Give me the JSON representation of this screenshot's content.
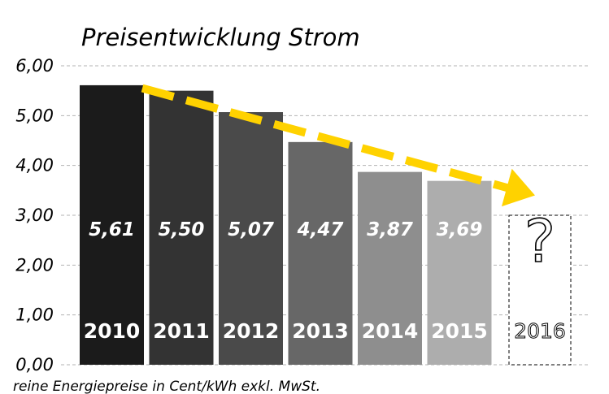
{
  "chart_data": {
    "type": "bar",
    "title": "Preisentwicklung Strom",
    "categories": [
      "2010",
      "2011",
      "2012",
      "2013",
      "2014",
      "2015",
      "2016"
    ],
    "values": [
      5.61,
      5.5,
      5.07,
      4.47,
      3.87,
      3.69,
      null
    ],
    "value_labels": [
      "5,61",
      "5,50",
      "5,07",
      "4,47",
      "3,87",
      "3,69",
      "?"
    ],
    "colors": [
      "#1b1b1b",
      "#333333",
      "#4a4a4a",
      "#676767",
      "#8e8e8e",
      "#adadad",
      "#ffffff"
    ],
    "ylim": [
      0,
      6
    ],
    "yticks": [
      {
        "value": 0,
        "label": "0,00"
      },
      {
        "value": 1,
        "label": "1,00"
      },
      {
        "value": 2,
        "label": "2,00"
      },
      {
        "value": 3,
        "label": "3,00"
      },
      {
        "value": 4,
        "label": "4,00"
      },
      {
        "value": 5,
        "label": "5,00"
      },
      {
        "value": 6,
        "label": "6,00"
      }
    ],
    "grid": true,
    "forecast_category": "2016",
    "forecast_value": 3.0,
    "trend_arrow": {
      "from_value": 5.55,
      "to_value": 3.4,
      "color": "#ffd200"
    },
    "footnote": "reine Energiepreise in Cent/kWh exkl. MwSt."
  }
}
